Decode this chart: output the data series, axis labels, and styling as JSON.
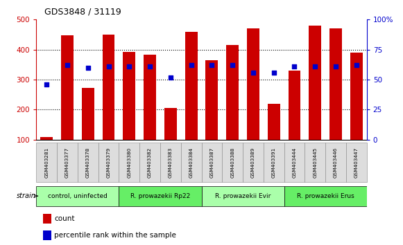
{
  "title": "GDS3848 / 31119",
  "samples": [
    "GSM403281",
    "GSM403377",
    "GSM403378",
    "GSM403379",
    "GSM403380",
    "GSM403382",
    "GSM403383",
    "GSM403384",
    "GSM403387",
    "GSM403388",
    "GSM403389",
    "GSM403391",
    "GSM403444",
    "GSM403445",
    "GSM403446",
    "GSM403447"
  ],
  "counts": [
    108,
    447,
    272,
    451,
    393,
    382,
    205,
    460,
    365,
    415,
    470,
    220,
    330,
    480,
    470,
    390
  ],
  "percentiles": [
    46,
    62,
    60,
    61,
    61,
    61,
    52,
    62,
    62,
    62,
    56,
    56,
    61,
    61,
    61,
    62
  ],
  "groups": [
    {
      "label": "control, uninfected",
      "start": 0,
      "end": 3,
      "color": "#aaffaa"
    },
    {
      "label": "R. prowazekii Rp22",
      "start": 4,
      "end": 7,
      "color": "#66ee66"
    },
    {
      "label": "R. prowazekii Evir",
      "start": 8,
      "end": 11,
      "color": "#aaffaa"
    },
    {
      "label": "R. prowazekii Erus",
      "start": 12,
      "end": 15,
      "color": "#66ee66"
    }
  ],
  "bar_color": "#cc0000",
  "dot_color": "#0000cc",
  "left_ylim": [
    100,
    500
  ],
  "right_ylim": [
    0,
    100
  ],
  "left_yticks": [
    100,
    200,
    300,
    400,
    500
  ],
  "right_yticks": [
    0,
    25,
    50,
    75,
    100
  ],
  "right_yticklabels": [
    "0",
    "25",
    "50",
    "75",
    "100%"
  ],
  "bg_color": "#ffffff",
  "plot_bg_color": "#ffffff",
  "ylabel_left_color": "#cc0000",
  "ylabel_right_color": "#0000cc",
  "strain_label": "strain",
  "legend_count": "count",
  "legend_percentile": "percentile rank within the sample",
  "bar_width": 0.6,
  "gridline_values": [
    200,
    300,
    400
  ],
  "sample_box_color": "#dddddd",
  "sample_box_edge": "#888888"
}
